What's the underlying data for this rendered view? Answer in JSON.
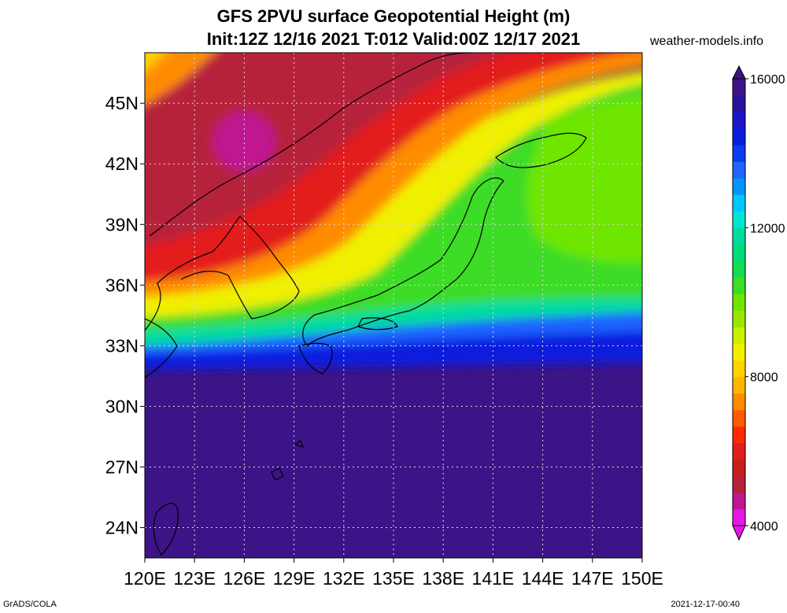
{
  "title": {
    "line1": "GFS 2PVU surface Geopotential Height (m)",
    "line2": "Init:12Z 12/16 2021 T:012 Valid:00Z 12/17 2021"
  },
  "site": "weather-models.info",
  "footer": {
    "left": "GrADS/COLA",
    "right": "2021-12-17-00:40"
  },
  "map": {
    "lon_ticks": [
      "120E",
      "123E",
      "126E",
      "129E",
      "132E",
      "135E",
      "138E",
      "141E",
      "144E",
      "147E",
      "150E"
    ],
    "lat_ticks": [
      "45N",
      "42N",
      "39N",
      "36N",
      "33N",
      "30N",
      "27N",
      "24N"
    ],
    "lon_range": [
      120,
      150
    ],
    "lat_range": [
      22.5,
      47.5
    ]
  },
  "colorbar": {
    "labels": [
      "16000",
      "12000",
      "8000",
      "4000"
    ],
    "colors": [
      "#e617e6",
      "#c0168f",
      "#b7213a",
      "#c81e1e",
      "#e31c1c",
      "#ff2a00",
      "#ff5a00",
      "#ff8c00",
      "#ffb400",
      "#ffd200",
      "#f0f000",
      "#c8f000",
      "#9ae600",
      "#6ee600",
      "#3cdc28",
      "#14dc50",
      "#00dc78",
      "#00dca0",
      "#00e6d2",
      "#00c8ff",
      "#0096ff",
      "#1e64ff",
      "#0a3cf0",
      "#0a1ede",
      "#1e14c8",
      "#28149b",
      "#3c1487"
    ],
    "min": 4000,
    "max": 16000
  }
}
